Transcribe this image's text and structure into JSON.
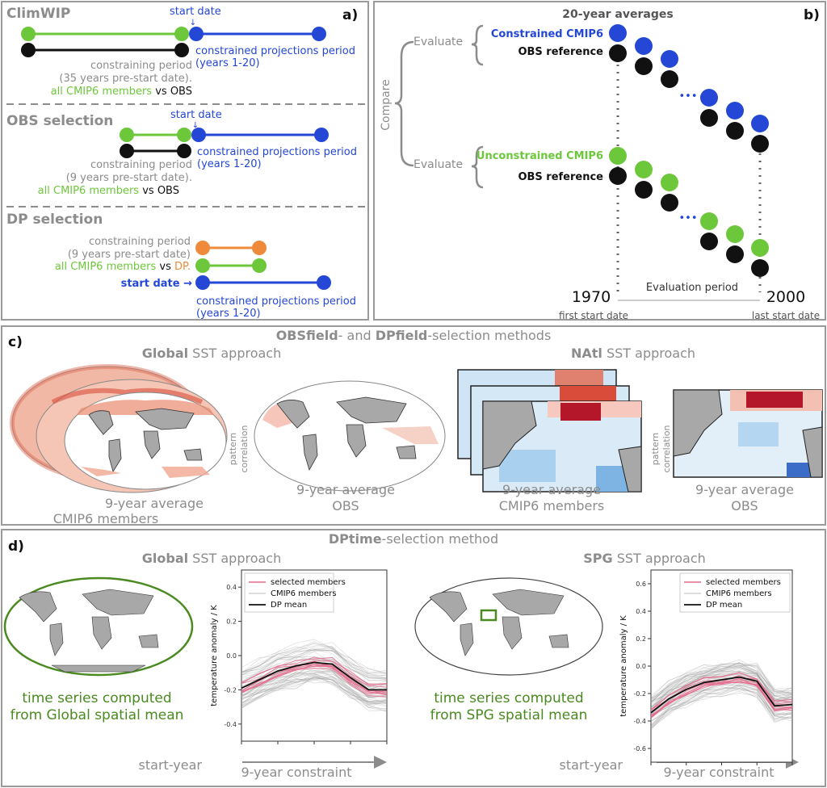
{
  "colors": {
    "green": "#6cc83a",
    "blue": "#2447d6",
    "black": "#111111",
    "orange": "#ef8a3a",
    "gray": "#8c8c8c",
    "frame": "#9a9a9a",
    "pink": "#e46a8c",
    "dark_green": "#4a8a20"
  },
  "panel_a": {
    "label": "a)",
    "climwip": {
      "title": "ClimWIP",
      "start_date": "start date",
      "proj_line1": "constrained projections period",
      "proj_line2": "(years 1-20)",
      "con_line1": "constraining period",
      "con_line2": "(35 years pre-start date).",
      "cmip": "all CMIP6 members",
      "vs": "vs",
      "obs": "OBS"
    },
    "obssel": {
      "title": "OBS selection",
      "start_date": "start date",
      "proj_line1": "constrained projections period",
      "proj_line2": "(years 1-20)",
      "con_line1": "constraining period",
      "con_line2": "(9 years pre-start date).",
      "cmip": "all CMIP6 members",
      "vs": "vs",
      "obs": "OBS"
    },
    "dpsel": {
      "title": "DP selection",
      "con_line1": "constraining period",
      "con_line2": "(9 years pre-start date)",
      "cmip": "all CMIP6 members",
      "vs": "vs",
      "dp": "DP.",
      "start_date": "start date →",
      "proj_line1": "constrained projections period",
      "proj_line2": "(years 1-20)"
    }
  },
  "panel_b": {
    "label": "b)",
    "title": "20-year averages",
    "compare": "Compare",
    "evaluate": "Evaluate",
    "constrained": "Constrained CMIP6",
    "obs_ref": "OBS reference",
    "unconstrained": "Unconstrained CMIP6",
    "dots": "•••",
    "year_start": "1970",
    "year_end": "2000",
    "eval_period": "Evaluation period",
    "first_start": "first start date",
    "last_start": "last start date"
  },
  "panel_c": {
    "label": "c)",
    "title_b1": "OBSfield",
    "title_mid": "- and ",
    "title_b2": "DPfield",
    "title_end": "-selection methods",
    "global_b": "Global",
    "global_rest": " SST approach",
    "natl_b": "NAtl",
    "natl_rest": " SST approach",
    "pattern1": "pattern",
    "pattern2": "correlation",
    "avg9": "9-year average",
    "cmip_members": "CMIP6 members",
    "obs": "OBS"
  },
  "panel_d": {
    "label": "d)",
    "title_b": "DPtime",
    "title_rest": "-selection method",
    "global_b": "Global",
    "global_rest": " SST approach",
    "spg_b": "SPG",
    "spg_rest": " SST approach",
    "ts_line1": "time series computed",
    "ts_global": "from Global spatial mean",
    "ts_spg": "from SPG spatial mean",
    "start_year": "start-year",
    "constraint": "9-year constraint",
    "ylabel": "temperature anomaly / K",
    "legend_selected": "selected members",
    "legend_cmip": "CMIP6 members",
    "legend_dp": "DP mean"
  },
  "chart_data": [
    {
      "type": "line",
      "title": "",
      "xlabel": "",
      "ylabel": "temperature anomaly / K",
      "x": [
        1,
        2,
        3,
        4,
        5,
        6,
        7,
        8,
        9
      ],
      "ylim": [
        -0.5,
        0.5
      ],
      "yticks": [
        -0.4,
        -0.2,
        0.0,
        0.2,
        0.4
      ],
      "legend": "top-left",
      "grid": false,
      "series": [
        {
          "name": "DP mean",
          "values": [
            -0.19,
            -0.14,
            -0.09,
            -0.06,
            -0.04,
            -0.05,
            -0.13,
            -0.2,
            -0.2
          ]
        }
      ]
    },
    {
      "type": "line",
      "title": "",
      "xlabel": "",
      "ylabel": "temperature anomaly / K",
      "x": [
        1,
        2,
        3,
        4,
        5,
        6,
        7,
        8,
        9
      ],
      "ylim": [
        -0.7,
        0.7
      ],
      "yticks": [
        -0.6,
        -0.4,
        -0.2,
        0.0,
        0.2,
        0.4,
        0.6
      ],
      "legend": "top-right",
      "grid": false,
      "series": [
        {
          "name": "DP mean",
          "values": [
            -0.34,
            -0.24,
            -0.17,
            -0.12,
            -0.1,
            -0.08,
            -0.11,
            -0.29,
            -0.28
          ]
        }
      ]
    }
  ]
}
